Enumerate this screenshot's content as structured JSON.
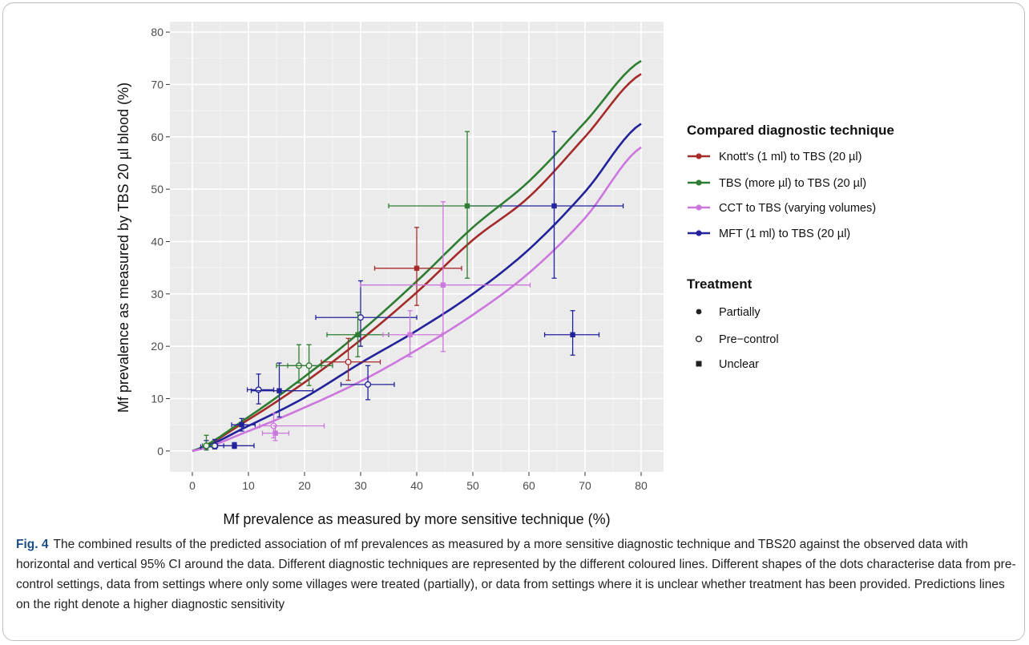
{
  "chart_data": {
    "type": "scatter",
    "xlabel": "Mf prevalence as measured by more sensitive technique (%)",
    "ylabel": "Mf prevalence as measured by TBS 20 µl blood (%)",
    "xlim": [
      -4,
      84
    ],
    "ylim": [
      -4,
      82
    ],
    "x_ticks": [
      0,
      10,
      20,
      30,
      40,
      50,
      60,
      70,
      80
    ],
    "y_ticks": [
      0,
      10,
      20,
      30,
      40,
      50,
      60,
      70,
      80
    ],
    "grid": true,
    "legend_position": "right",
    "legend_technique": {
      "title": "Compared diagnostic technique",
      "entries": [
        {
          "label": "Knott's (1 ml) to TBS (20 µl)",
          "color": "#a52a2a"
        },
        {
          "label": "TBS (more µl) to TBS (20 µl)",
          "color": "#2e7d32"
        },
        {
          "label": "CCT to TBS (varying volumes)",
          "color": "#cc77dd"
        },
        {
          "label": "MFT (1 ml) to TBS (20 µl)",
          "color": "#22229a"
        }
      ]
    },
    "legend_treatment": {
      "title": "Treatment",
      "entries": [
        {
          "label": "Partially",
          "shape": "filled-circle"
        },
        {
          "label": "Pre−control",
          "shape": "open-circle"
        },
        {
          "label": "Unclear",
          "shape": "filled-square"
        }
      ]
    },
    "prediction_lines": [
      {
        "name": "Knott's (1 ml) to TBS (20 µl)",
        "color": "#a52a2a",
        "x": [
          0,
          10,
          20,
          30,
          40,
          50,
          60,
          70,
          80
        ],
        "y": [
          0,
          6.0,
          13.1,
          21.2,
          30.3,
          40.3,
          48.5,
          60.0,
          72.0
        ]
      },
      {
        "name": "TBS (more µl) to TBS (20 µl)",
        "color": "#2e7d32",
        "x": [
          0,
          10,
          20,
          30,
          40,
          50,
          60,
          70,
          80
        ],
        "y": [
          0,
          6.5,
          14.2,
          22.8,
          32.4,
          42.7,
          51.5,
          62.8,
          74.5
        ]
      },
      {
        "name": "MFT (1 ml) to TBS (20 µl)",
        "color": "#22229a",
        "x": [
          0,
          10,
          20,
          30,
          40,
          50,
          60,
          70,
          80
        ],
        "y": [
          0,
          4.8,
          10.2,
          16.8,
          23.0,
          30.0,
          38.5,
          49.5,
          62.5
        ]
      },
      {
        "name": "CCT to TBS (varying volumes)",
        "color": "#cc77dd",
        "x": [
          0,
          10,
          20,
          30,
          40,
          50,
          60,
          70,
          80
        ],
        "y": [
          0,
          3.8,
          8.3,
          13.3,
          19.3,
          26.0,
          34.0,
          44.5,
          58.0
        ]
      }
    ],
    "points": [
      {
        "group": "MFT (1 ml) to TBS (20 µl)",
        "shape": "filled-circle",
        "x": 2.5,
        "y": 0.8,
        "xerr": [
          1.5,
          4.0
        ],
        "yerr": [
          0.2,
          2.0
        ]
      },
      {
        "group": "MFT (1 ml) to TBS (20 µl)",
        "shape": "open-circle",
        "x": 4.0,
        "y": 1.0,
        "xerr": [
          2.8,
          5.6
        ],
        "yerr": [
          0.4,
          2.2
        ]
      },
      {
        "group": "MFT (1 ml) to TBS (20 µl)",
        "shape": "filled-square",
        "x": 7.5,
        "y": 1.0,
        "xerr": [
          4.5,
          11.0
        ],
        "yerr": [
          0.5,
          1.6
        ]
      },
      {
        "group": "MFT (1 ml) to TBS (20 µl)",
        "shape": "filled-square",
        "x": 8.8,
        "y": 5.0,
        "xerr": [
          7.0,
          11.2
        ],
        "yerr": [
          3.8,
          6.2
        ]
      },
      {
        "group": "MFT (1 ml) to TBS (20 µl)",
        "shape": "open-circle",
        "x": 11.8,
        "y": 11.7,
        "xerr": [
          9.8,
          14.5
        ],
        "yerr": [
          9.0,
          14.7
        ]
      },
      {
        "group": "MFT (1 ml) to TBS (20 µl)",
        "shape": "filled-square",
        "x": 15.5,
        "y": 11.5,
        "xerr": [
          10.5,
          21.5
        ],
        "yerr": [
          6.5,
          16.8
        ]
      },
      {
        "group": "MFT (1 ml) to TBS (20 µl)",
        "shape": "open-circle",
        "x": 30.0,
        "y": 25.5,
        "xerr": [
          22.0,
          40.0
        ],
        "yerr": [
          20.0,
          32.5
        ]
      },
      {
        "group": "MFT (1 ml) to TBS (20 µl)",
        "shape": "open-circle",
        "x": 31.3,
        "y": 12.7,
        "xerr": [
          26.5,
          36.0
        ],
        "yerr": [
          9.8,
          16.3
        ]
      },
      {
        "group": "MFT (1 ml) to TBS (20 µl)",
        "shape": "filled-square",
        "x": 64.5,
        "y": 46.8,
        "xerr": [
          49.0,
          76.8
        ],
        "yerr": [
          33.0,
          61.0
        ]
      },
      {
        "group": "MFT (1 ml) to TBS (20 µl)",
        "shape": "filled-square",
        "x": 67.8,
        "y": 22.2,
        "xerr": [
          62.8,
          72.5
        ],
        "yerr": [
          18.3,
          26.8
        ]
      },
      {
        "group": "TBS (more µl) to TBS (20 µl)",
        "shape": "open-circle",
        "x": 2.5,
        "y": 1.0,
        "xerr": [
          1.8,
          3.5
        ],
        "yerr": [
          0.2,
          3.0
        ]
      },
      {
        "group": "TBS (more µl) to TBS (20 µl)",
        "shape": "open-circle",
        "x": 19.0,
        "y": 16.3,
        "xerr": [
          15.0,
          23.0
        ],
        "yerr": [
          13.0,
          20.3
        ]
      },
      {
        "group": "TBS (more µl) to TBS (20 µl)",
        "shape": "open-circle",
        "x": 20.8,
        "y": 16.3,
        "xerr": [
          17.0,
          25.0
        ],
        "yerr": [
          12.5,
          20.3
        ]
      },
      {
        "group": "TBS (more µl) to TBS (20 µl)",
        "shape": "filled-square",
        "x": 29.5,
        "y": 22.2,
        "xerr": [
          24.0,
          35.0
        ],
        "yerr": [
          18.0,
          26.5
        ]
      },
      {
        "group": "TBS (more µl) to TBS (20 µl)",
        "shape": "filled-square",
        "x": 49.0,
        "y": 46.8,
        "xerr": [
          35.0,
          55.0
        ],
        "yerr": [
          33.0,
          61.0
        ]
      },
      {
        "group": "Knott's (1 ml) to TBS (20 µl)",
        "shape": "open-circle",
        "x": 27.8,
        "y": 17.0,
        "xerr": [
          23.0,
          33.5
        ],
        "yerr": [
          13.5,
          21.5
        ]
      },
      {
        "group": "Knott's (1 ml) to TBS (20 µl)",
        "shape": "filled-square",
        "x": 40.0,
        "y": 34.9,
        "xerr": [
          32.5,
          48.0
        ],
        "yerr": [
          27.8,
          42.7
        ]
      },
      {
        "group": "CCT to TBS (varying volumes)",
        "shape": "open-circle",
        "x": 14.5,
        "y": 4.8,
        "xerr": [
          12.0,
          23.5
        ],
        "yerr": [
          2.5,
          7.2
        ]
      },
      {
        "group": "CCT to TBS (varying volumes)",
        "shape": "filled-square",
        "x": 14.8,
        "y": 3.4,
        "xerr": [
          12.5,
          17.2
        ],
        "yerr": [
          2.0,
          4.8
        ]
      },
      {
        "group": "CCT to TBS (varying volumes)",
        "shape": "filled-square",
        "x": 38.8,
        "y": 22.2,
        "xerr": [
          34.0,
          44.5
        ],
        "yerr": [
          18.0,
          26.8
        ]
      },
      {
        "group": "CCT to TBS (varying volumes)",
        "shape": "filled-square",
        "x": 44.7,
        "y": 31.7,
        "xerr": [
          30.0,
          60.2
        ],
        "yerr": [
          19.0,
          47.6
        ]
      }
    ]
  },
  "caption": {
    "label": "Fig. 4",
    "text": "The combined results of the predicted association of mf prevalences as measured by a more sensitive diagnostic technique and TBS20 against the observed data with horizontal and vertical 95% CI around the data. Different diagnostic techniques are represented by the different coloured lines. Different shapes of the dots characterise data from pre-control settings, data from settings where only some villages were treated (partially), or data from settings where it is unclear whether treatment has been provided. Predictions lines on the right denote a higher diagnostic sensitivity"
  }
}
